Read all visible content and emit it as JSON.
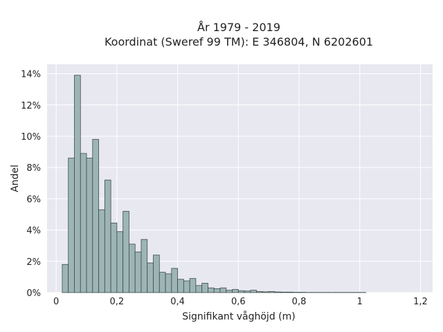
{
  "chart_data": {
    "type": "bar",
    "title": "År 1979 - 2019",
    "subtitle": "Koordinat (Sweref 99 TM): E 346804, N 6202601",
    "xlabel": "Signifikant våghöjd (m)",
    "ylabel": "Andel",
    "xlim": [
      -0.03,
      1.24
    ],
    "ylim": [
      0,
      14.6
    ],
    "x_ticks": [
      0,
      0.2,
      0.4,
      0.6,
      0.8,
      1,
      1.2
    ],
    "x_tick_labels": [
      "0",
      "0,2",
      "0,4",
      "0,6",
      "0,8",
      "1",
      "1,2"
    ],
    "y_ticks": [
      0,
      2,
      4,
      6,
      8,
      10,
      12,
      14
    ],
    "y_tick_labels": [
      "0%",
      "2%",
      "4%",
      "6%",
      "8%",
      "10%",
      "12%",
      "14%"
    ],
    "bin_width": 0.02,
    "bin_starts": [
      0.02,
      0.04,
      0.06,
      0.08,
      0.1,
      0.12,
      0.14,
      0.16,
      0.18,
      0.2,
      0.22,
      0.24,
      0.26,
      0.28,
      0.3,
      0.32,
      0.34,
      0.36,
      0.38,
      0.4,
      0.42,
      0.44,
      0.46,
      0.48,
      0.5,
      0.52,
      0.54,
      0.56,
      0.58,
      0.6,
      0.62,
      0.64,
      0.66,
      0.68,
      0.7,
      0.72,
      0.74,
      0.76,
      0.78,
      0.8,
      0.82,
      0.84,
      0.86,
      0.88,
      0.9,
      0.92,
      0.94,
      0.96,
      0.98,
      1.0
    ],
    "values": [
      1.8,
      8.6,
      13.9,
      8.9,
      8.6,
      9.8,
      5.3,
      7.2,
      4.45,
      3.9,
      5.2,
      3.1,
      2.6,
      3.4,
      1.9,
      2.4,
      1.3,
      1.2,
      1.55,
      0.85,
      0.75,
      0.9,
      0.45,
      0.6,
      0.3,
      0.25,
      0.3,
      0.15,
      0.2,
      0.12,
      0.1,
      0.15,
      0.07,
      0.05,
      0.07,
      0.04,
      0.03,
      0.03,
      0.02,
      0.02,
      0.01,
      0.01,
      0.01,
      0.01,
      0.01,
      0.01,
      0.01,
      0.01,
      0.01,
      0.01
    ],
    "grid": true,
    "bar_color": "#9db5b6",
    "bar_edge_color": "#3c4a4a",
    "plot_background": "#e8e8f1",
    "grid_color": "#ffffff"
  }
}
